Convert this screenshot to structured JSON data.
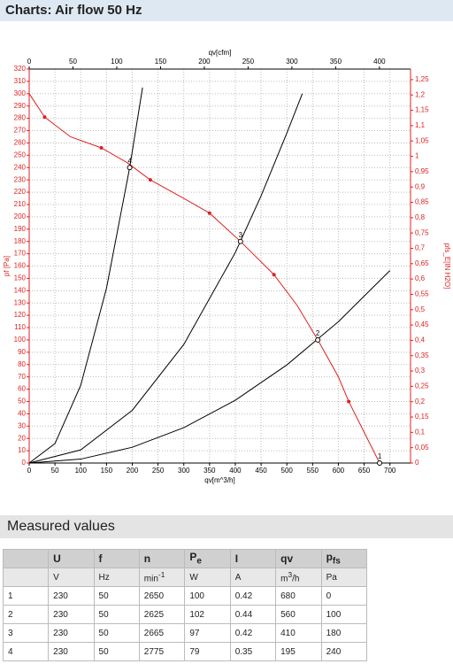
{
  "header": {
    "title": "Charts: Air flow 50 Hz"
  },
  "chart_data": {
    "type": "line",
    "xlabel": "qv[m^3/h]",
    "x2label": "qv[cfm]",
    "ylabel": "pf [Pa]",
    "y2label": "pfs_E[IN H2O]",
    "xlim": [
      0,
      740
    ],
    "xticks": [
      0,
      50,
      100,
      150,
      200,
      250,
      300,
      350,
      400,
      450,
      500,
      550,
      600,
      650,
      700
    ],
    "x2lim": [
      0,
      435.5
    ],
    "x2ticks": [
      0,
      50,
      100,
      150,
      200,
      250,
      300,
      350,
      400
    ],
    "ylim": [
      0,
      320
    ],
    "yticks": [
      0,
      10,
      20,
      30,
      40,
      50,
      60,
      70,
      80,
      90,
      100,
      110,
      120,
      130,
      140,
      150,
      160,
      170,
      180,
      190,
      200,
      210,
      220,
      230,
      240,
      250,
      260,
      270,
      280,
      290,
      300,
      310,
      320
    ],
    "y2lim": [
      0,
      1.2845
    ],
    "y2ticks": [
      0,
      {
        "value": 0.05,
        "label": "0,05"
      },
      {
        "value": 0.1,
        "label": "0,1"
      },
      {
        "value": 0.15,
        "label": "0,15"
      },
      {
        "value": 0.2,
        "label": "0,2"
      },
      {
        "value": 0.25,
        "label": "0,25"
      },
      {
        "value": 0.3,
        "label": "0,3"
      },
      {
        "value": 0.35,
        "label": "0,35"
      },
      {
        "value": 0.4,
        "label": "0,4"
      },
      {
        "value": 0.45,
        "label": "0,45"
      },
      {
        "value": 0.5,
        "label": "0,5"
      },
      {
        "value": 0.55,
        "label": "0,55"
      },
      {
        "value": 0.6,
        "label": "0,6"
      },
      {
        "value": 0.65,
        "label": "0,65"
      },
      {
        "value": 0.7,
        "label": "0,7"
      },
      {
        "value": 0.75,
        "label": "0,75"
      },
      {
        "value": 0.8,
        "label": "0,8"
      },
      {
        "value": 0.85,
        "label": "0,85"
      },
      {
        "value": 0.9,
        "label": "0,9"
      },
      {
        "value": 0.95,
        "label": "0,95"
      },
      1,
      {
        "value": 1.05,
        "label": "1,05"
      },
      {
        "value": 1.1,
        "label": "1,1"
      },
      {
        "value": 1.15,
        "label": "1,15"
      },
      {
        "value": 1.2,
        "label": "1,2"
      },
      {
        "value": 1.25,
        "label": "1,25"
      }
    ],
    "grid": true,
    "axis_color": "#e02020",
    "series": [
      {
        "color": "#e02020",
        "x": [
          0,
          30,
          80,
          140,
          190,
          235,
          300,
          350,
          410,
          475,
          520,
          560,
          600,
          620,
          650,
          680
        ],
        "values": [
          300,
          281,
          265,
          256,
          244,
          230,
          215,
          203,
          180,
          153,
          128,
          100,
          70,
          50,
          25,
          0
        ]
      },
      {
        "color": "#000000",
        "x": [
          0,
          100,
          200,
          300,
          400,
          500,
          600,
          700
        ],
        "values": [
          0,
          3.2,
          12.8,
          28.7,
          51,
          79.7,
          114.8,
          156.3
        ]
      },
      {
        "color": "#000000",
        "x": [
          0,
          100,
          200,
          300,
          400,
          450,
          500,
          530
        ],
        "values": [
          0,
          10.7,
          42.8,
          96.3,
          171,
          217,
          268,
          300
        ]
      },
      {
        "color": "#000000",
        "x": [
          0,
          50,
          100,
          150,
          195,
          220
        ],
        "values": [
          0,
          15.8,
          63.1,
          142,
          240,
          305
        ]
      }
    ],
    "markers": {
      "color": "#e02020",
      "x": [
        30,
        140,
        235,
        350,
        475,
        620
      ],
      "values": [
        281,
        256,
        230,
        203,
        153,
        50
      ]
    }
  },
  "measured": {
    "title": "Measured values",
    "header": [
      {
        "main": "U"
      },
      {
        "main": "f"
      },
      {
        "main": "n"
      },
      {
        "main": "P",
        "sub": "e"
      },
      {
        "main": "I"
      },
      {
        "main": "qv"
      },
      {
        "main": "p",
        "sub": "fs"
      }
    ],
    "units": [
      {
        "main": "V"
      },
      {
        "main": "Hz"
      },
      {
        "main": "min",
        "sup": "-1"
      },
      {
        "main": "W"
      },
      {
        "main": "A"
      },
      {
        "main": "m",
        "sup": "3",
        "tail": "/h"
      },
      {
        "main": "Pa"
      }
    ],
    "rows": [
      [
        1,
        230,
        50,
        2650,
        100,
        0.42,
        680,
        0
      ],
      [
        2,
        230,
        50,
        2625,
        102,
        0.44,
        560,
        100
      ],
      [
        3,
        230,
        50,
        2665,
        97,
        0.42,
        410,
        180
      ],
      [
        4,
        230,
        50,
        2775,
        79,
        0.35,
        195,
        240
      ]
    ]
  }
}
